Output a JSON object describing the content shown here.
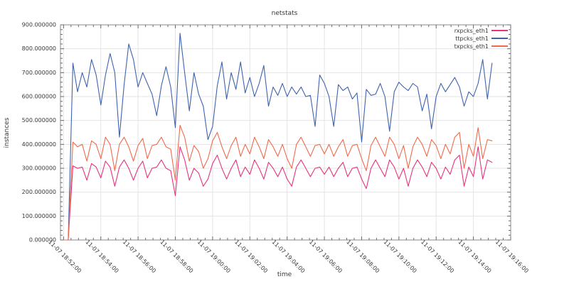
{
  "chart_data": {
    "type": "line",
    "title": "netstats",
    "xlabel": "time",
    "ylabel": "instances",
    "ylim": [
      0,
      900
    ],
    "ytick_step": 100,
    "ytick_labels": [
      "0.000000",
      "100.000000",
      "200.000000",
      "300.000000",
      "400.000000",
      "500.000000",
      "600.000000",
      "700.000000",
      "800.000000",
      "900.000000"
    ],
    "xtick_labels": [
      "11-07 18:52:00",
      "11-07 18:54:00",
      "11-07 18:56:00",
      "11-07 18:58:00",
      "11-07 19:00:00",
      "11-07 19:02:00",
      "11-07 19:04:00",
      "11-07 19:06:00",
      "11-07 19:08:00",
      "11-07 19:10:00",
      "11-07 19:12:00",
      "11-07 19:14:00",
      "11-07 19:16:00"
    ],
    "xtick_interval_seconds": 120,
    "x_start_label": "11-07 18:52:00",
    "sample_interval_seconds": 15,
    "grid": true,
    "legend_position": "top-right",
    "colors": {
      "grid": "#e4e4e4",
      "border": "#8a8a8a",
      "tick": "#6a6a6a",
      "text": "#383838"
    },
    "series": [
      {
        "name": "rxpcks_eth1",
        "color": "#e7337d",
        "values": [
          0,
          0,
          310,
          300,
          305,
          250,
          320,
          305,
          260,
          330,
          305,
          225,
          305,
          335,
          300,
          250,
          300,
          330,
          260,
          300,
          305,
          335,
          300,
          290,
          185,
          390,
          335,
          250,
          300,
          280,
          225,
          255,
          320,
          355,
          300,
          255,
          300,
          335,
          265,
          305,
          275,
          335,
          300,
          255,
          325,
          300,
          265,
          305,
          255,
          225,
          305,
          335,
          300,
          265,
          300,
          305,
          275,
          305,
          265,
          300,
          325,
          265,
          300,
          305,
          255,
          215,
          300,
          335,
          300,
          265,
          335,
          305,
          255,
          300,
          225,
          300,
          335,
          305,
          265,
          325,
          300,
          255,
          305,
          275,
          335,
          355,
          225,
          305,
          265,
          390,
          255,
          335,
          325
        ]
      },
      {
        "name": "ttpcks_eth1",
        "color": "#3f63ad",
        "values": [
          0,
          0,
          740,
          620,
          700,
          640,
          755,
          690,
          565,
          690,
          780,
          700,
          430,
          650,
          820,
          755,
          640,
          700,
          655,
          610,
          520,
          645,
          725,
          640,
          470,
          865,
          700,
          540,
          700,
          610,
          560,
          420,
          475,
          645,
          745,
          590,
          700,
          630,
          745,
          615,
          680,
          600,
          655,
          730,
          560,
          640,
          605,
          655,
          600,
          640,
          610,
          640,
          600,
          605,
          475,
          690,
          655,
          600,
          475,
          650,
          625,
          640,
          590,
          615,
          410,
          630,
          605,
          610,
          655,
          600,
          455,
          620,
          660,
          640,
          625,
          655,
          640,
          540,
          610,
          465,
          600,
          655,
          620,
          650,
          680,
          640,
          560,
          620,
          600,
          655,
          755,
          590,
          740
        ]
      },
      {
        "name": "txpcks_eth1",
        "color": "#f06a4c",
        "values": [
          0,
          0,
          410,
          390,
          400,
          330,
          415,
          400,
          340,
          430,
          400,
          290,
          400,
          430,
          390,
          330,
          395,
          425,
          340,
          395,
          400,
          430,
          390,
          380,
          250,
          480,
          430,
          330,
          395,
          370,
          300,
          340,
          415,
          450,
          390,
          340,
          395,
          430,
          350,
          400,
          360,
          430,
          390,
          340,
          420,
          390,
          350,
          400,
          340,
          300,
          400,
          430,
          390,
          350,
          395,
          400,
          360,
          400,
          350,
          390,
          420,
          350,
          395,
          400,
          340,
          290,
          395,
          430,
          390,
          350,
          430,
          400,
          340,
          395,
          300,
          390,
          430,
          400,
          350,
          420,
          395,
          340,
          400,
          360,
          430,
          450,
          300,
          400,
          350,
          470,
          340,
          420,
          415
        ]
      }
    ]
  }
}
